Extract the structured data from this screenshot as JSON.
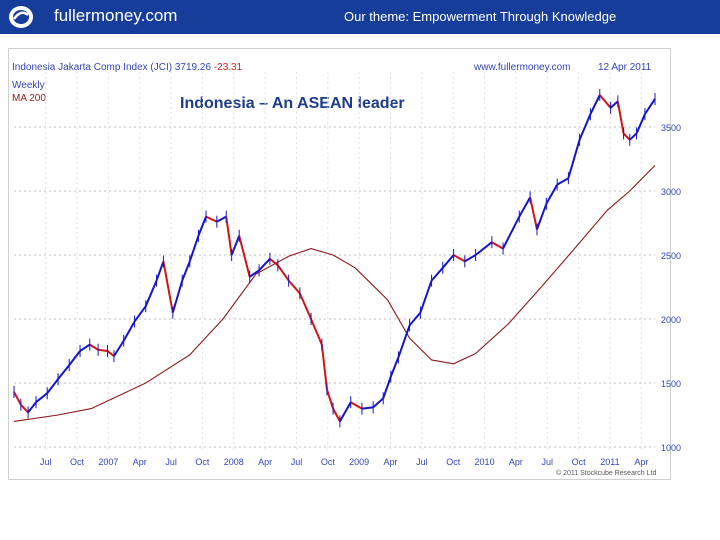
{
  "header": {
    "site": "fullermoney.com",
    "theme": "Our theme: Empowerment Through Knowledge",
    "brand_color": "#163d9a"
  },
  "chart_meta": {
    "index_name": "Indonesia Jakarta Comp Index (JCI)",
    "last_value": "3719.26",
    "change": "-23.31",
    "website": "www.fullermoney.com",
    "date": "12 Apr 2011",
    "period": "Weekly",
    "ma_label": "MA 200",
    "copyright": "© 2011 Stockcube Research Ltd"
  },
  "chart_data": {
    "type": "line",
    "title": "Indonesia – An ASEAN leader",
    "xlabel": "",
    "ylabel": "",
    "x_tick_labels": [
      "Jul",
      "Oct",
      "2007",
      "Apr",
      "Jul",
      "Oct",
      "2008",
      "Apr",
      "Jul",
      "Oct",
      "2009",
      "Apr",
      "Jul",
      "Oct",
      "2010",
      "Apr",
      "Jul",
      "Oct",
      "2011",
      "Apr"
    ],
    "y_ticks": [
      1000,
      1500,
      2000,
      2500,
      3000,
      3500
    ],
    "ylim": [
      1000,
      3750
    ],
    "grid": true,
    "x_start": "2006-06-01",
    "x_end": "2011-04-12",
    "colors": {
      "up": "#1515c8",
      "down": "#d01515",
      "ma": "#8b1a1a"
    },
    "series": [
      {
        "name": "Weekly",
        "values": [
          [
            "2006-06-01",
            1430
          ],
          [
            "2006-06-20",
            1330
          ],
          [
            "2006-07-10",
            1270
          ],
          [
            "2006-08-01",
            1350
          ],
          [
            "2006-09-01",
            1420
          ],
          [
            "2006-10-01",
            1530
          ],
          [
            "2006-11-01",
            1640
          ],
          [
            "2006-12-01",
            1750
          ],
          [
            "2006-12-28",
            1800
          ],
          [
            "2007-01-20",
            1760
          ],
          [
            "2007-02-15",
            1750
          ],
          [
            "2007-03-05",
            1710
          ],
          [
            "2007-04-01",
            1830
          ],
          [
            "2007-05-01",
            1980
          ],
          [
            "2007-06-01",
            2100
          ],
          [
            "2007-07-01",
            2300
          ],
          [
            "2007-07-20",
            2450
          ],
          [
            "2007-08-15",
            2050
          ],
          [
            "2007-09-10",
            2300
          ],
          [
            "2007-10-01",
            2450
          ],
          [
            "2007-10-25",
            2650
          ],
          [
            "2007-11-15",
            2800
          ],
          [
            "2007-12-15",
            2760
          ],
          [
            "2008-01-10",
            2800
          ],
          [
            "2008-01-25",
            2500
          ],
          [
            "2008-02-15",
            2650
          ],
          [
            "2008-03-15",
            2330
          ],
          [
            "2008-04-10",
            2380
          ],
          [
            "2008-05-10",
            2470
          ],
          [
            "2008-06-01",
            2420
          ],
          [
            "2008-07-01",
            2300
          ],
          [
            "2008-08-01",
            2200
          ],
          [
            "2008-09-01",
            2000
          ],
          [
            "2008-10-01",
            1800
          ],
          [
            "2008-10-15",
            1450
          ],
          [
            "2008-11-01",
            1300
          ],
          [
            "2008-11-20",
            1200
          ],
          [
            "2008-12-20",
            1350
          ],
          [
            "2009-01-20",
            1300
          ],
          [
            "2009-02-20",
            1310
          ],
          [
            "2009-03-20",
            1380
          ],
          [
            "2009-04-10",
            1550
          ],
          [
            "2009-05-01",
            1700
          ],
          [
            "2009-06-01",
            1950
          ],
          [
            "2009-07-01",
            2050
          ],
          [
            "2009-08-01",
            2300
          ],
          [
            "2009-09-01",
            2400
          ],
          [
            "2009-10-01",
            2500
          ],
          [
            "2009-11-01",
            2450
          ],
          [
            "2009-12-01",
            2500
          ],
          [
            "2010-01-15",
            2600
          ],
          [
            "2010-02-15",
            2550
          ],
          [
            "2010-04-01",
            2800
          ],
          [
            "2010-05-01",
            2950
          ],
          [
            "2010-05-20",
            2700
          ],
          [
            "2010-06-15",
            2900
          ],
          [
            "2010-07-15",
            3050
          ],
          [
            "2010-08-15",
            3100
          ],
          [
            "2010-09-15",
            3400
          ],
          [
            "2010-10-15",
            3600
          ],
          [
            "2010-11-10",
            3750
          ],
          [
            "2010-12-10",
            3650
          ],
          [
            "2010-12-30",
            3700
          ],
          [
            "2011-01-15",
            3450
          ],
          [
            "2011-02-01",
            3400
          ],
          [
            "2011-02-20",
            3450
          ],
          [
            "2011-03-15",
            3600
          ],
          [
            "2011-04-12",
            3719
          ]
        ]
      },
      {
        "name": "MA 200",
        "values": [
          [
            "2006-06-01",
            1200
          ],
          [
            "2006-10-01",
            1250
          ],
          [
            "2007-01-01",
            1300
          ],
          [
            "2007-06-01",
            1500
          ],
          [
            "2007-10-01",
            1720
          ],
          [
            "2008-01-01",
            2000
          ],
          [
            "2008-04-01",
            2350
          ],
          [
            "2008-07-01",
            2490
          ],
          [
            "2008-09-01",
            2550
          ],
          [
            "2008-11-01",
            2500
          ],
          [
            "2009-01-01",
            2400
          ],
          [
            "2009-04-01",
            2150
          ],
          [
            "2009-06-01",
            1850
          ],
          [
            "2009-08-01",
            1680
          ],
          [
            "2009-10-01",
            1650
          ],
          [
            "2009-12-01",
            1730
          ],
          [
            "2010-03-01",
            1960
          ],
          [
            "2010-06-01",
            2250
          ],
          [
            "2010-09-01",
            2550
          ],
          [
            "2010-12-01",
            2850
          ],
          [
            "2011-02-01",
            3000
          ],
          [
            "2011-04-12",
            3200
          ]
        ]
      }
    ]
  }
}
